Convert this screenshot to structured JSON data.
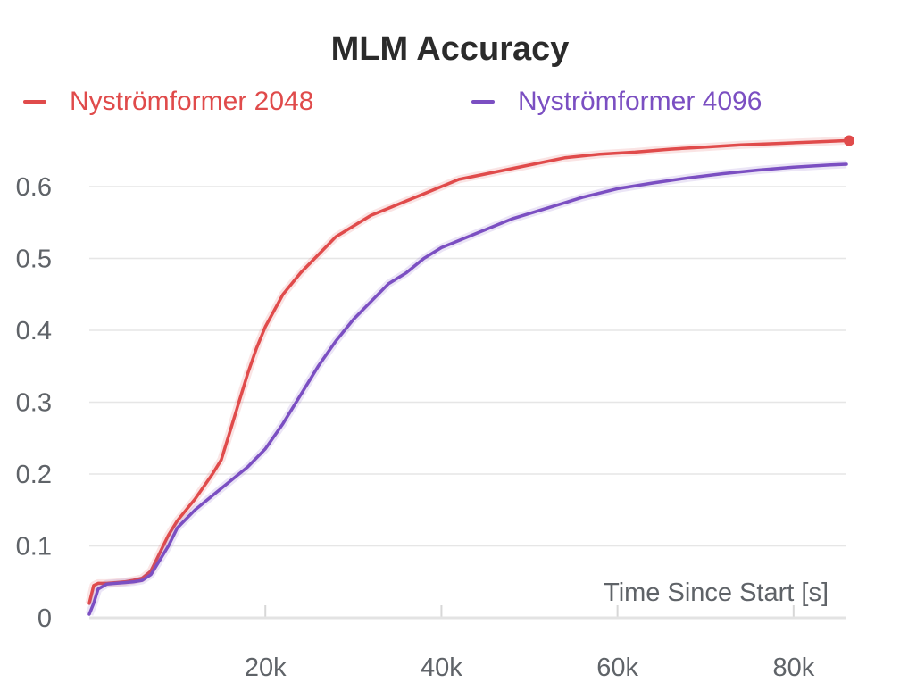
{
  "chart_data": {
    "type": "line",
    "title": "MLM Accuracy",
    "xlabel": "Time Since Start [s]",
    "ylabel": "",
    "xlim": [
      0,
      86000
    ],
    "ylim": [
      0,
      0.65
    ],
    "grid": true,
    "legend_position": "top",
    "x_ticks": [
      20000,
      40000,
      60000,
      80000
    ],
    "x_tick_labels": [
      "20k",
      "40k",
      "60k",
      "80k"
    ],
    "y_ticks": [
      0,
      0.1,
      0.2,
      0.3,
      0.4,
      0.5,
      0.6
    ],
    "y_tick_labels": [
      "0",
      "0.1",
      "0.2",
      "0.3",
      "0.4",
      "0.5",
      "0.6"
    ],
    "series": [
      {
        "name": "Nyströmformer 2048",
        "color": "#e04b4b",
        "x": [
          0,
          500,
          1000,
          2000,
          3000,
          4000,
          5000,
          6000,
          7000,
          8000,
          9000,
          10000,
          12000,
          14000,
          15000,
          16000,
          17000,
          18000,
          19000,
          20000,
          22000,
          24000,
          26000,
          28000,
          30000,
          32000,
          34000,
          36000,
          38000,
          40000,
          42000,
          44000,
          46000,
          50000,
          54000,
          58000,
          62000,
          66000,
          70000,
          74000,
          78000,
          82000,
          86000
        ],
        "y": [
          0.02,
          0.045,
          0.048,
          0.048,
          0.049,
          0.05,
          0.052,
          0.055,
          0.065,
          0.09,
          0.115,
          0.135,
          0.165,
          0.2,
          0.22,
          0.26,
          0.3,
          0.34,
          0.375,
          0.405,
          0.45,
          0.48,
          0.505,
          0.53,
          0.545,
          0.56,
          0.57,
          0.58,
          0.59,
          0.6,
          0.61,
          0.615,
          0.62,
          0.63,
          0.64,
          0.645,
          0.648,
          0.652,
          0.655,
          0.658,
          0.66,
          0.662,
          0.664
        ]
      },
      {
        "name": "Nyströmformer 4096",
        "color": "#7b4fc2",
        "x": [
          0,
          500,
          1000,
          2000,
          3000,
          4000,
          5000,
          6000,
          7000,
          8000,
          9000,
          10000,
          12000,
          14000,
          16000,
          18000,
          20000,
          22000,
          24000,
          26000,
          28000,
          30000,
          32000,
          34000,
          36000,
          38000,
          40000,
          42000,
          44000,
          46000,
          48000,
          52000,
          56000,
          60000,
          64000,
          68000,
          72000,
          76000,
          80000,
          84000,
          86000
        ],
        "y": [
          0.005,
          0.02,
          0.04,
          0.047,
          0.048,
          0.049,
          0.05,
          0.052,
          0.06,
          0.08,
          0.1,
          0.125,
          0.15,
          0.17,
          0.19,
          0.21,
          0.235,
          0.27,
          0.31,
          0.35,
          0.385,
          0.415,
          0.44,
          0.465,
          0.48,
          0.5,
          0.515,
          0.525,
          0.535,
          0.545,
          0.555,
          0.57,
          0.585,
          0.597,
          0.605,
          0.612,
          0.618,
          0.623,
          0.627,
          0.63,
          0.631
        ]
      }
    ]
  }
}
